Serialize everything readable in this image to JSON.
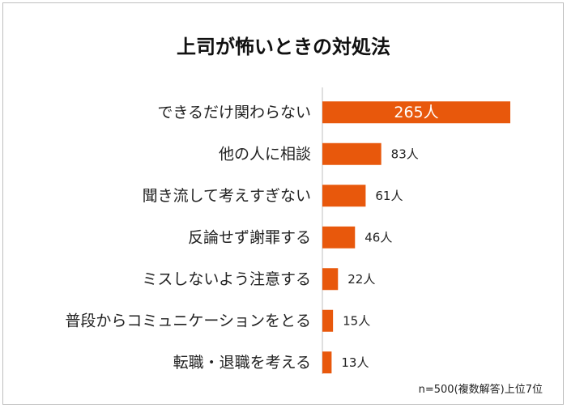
{
  "title": "上司が怖いときの対処法",
  "note": "n=500(複数解答)上位7位",
  "colors": {
    "bar": "#e8580c",
    "axis": "#bfbfbf",
    "text": "#222222",
    "inner_label": "#ffffff"
  },
  "chart_data": {
    "type": "bar",
    "orientation": "horizontal",
    "title": "上司が怖いときの対処法",
    "unit": "人",
    "categories": [
      "できるだけ関わらない",
      "他の人に相談",
      "聞き流して考えすぎない",
      "反論せず謝罪する",
      "ミスしないよう注意する",
      "普段からコミュニケーションをとる",
      "転職・退職を考える"
    ],
    "values": [
      265,
      83,
      61,
      46,
      22,
      15,
      13
    ],
    "data_labels": [
      "265人",
      "83人",
      "61人",
      "46人",
      "22人",
      "15人",
      "13人"
    ],
    "xlim": [
      0,
      265
    ]
  }
}
